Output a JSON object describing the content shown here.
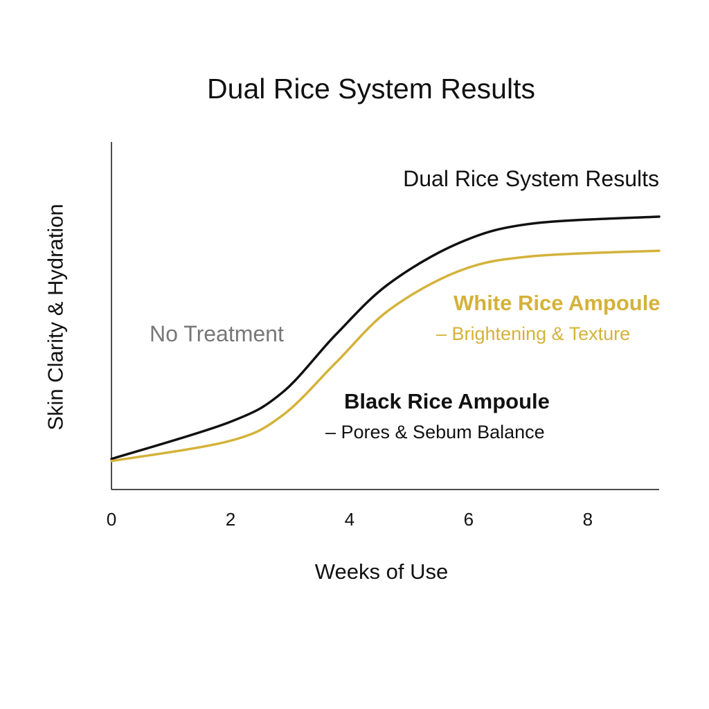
{
  "chart_data": {
    "type": "line",
    "title": "Dual Rice System Results",
    "inner_title": "Dual Rice System Results",
    "xlabel": "Weeks of Use",
    "ylabel": "Skin Clarity & Hydration",
    "xlim": [
      0,
      9.2
    ],
    "ylim": [
      0,
      100
    ],
    "x_ticks": [
      0,
      2,
      4,
      6,
      8
    ],
    "x_tick_labels": [
      "0",
      "2",
      "4",
      "6",
      "8"
    ],
    "grid": false,
    "series": [
      {
        "name": "Dual Rice System",
        "color": "#111111",
        "x": [
          0,
          1.97,
          2.87,
          3.77,
          4.66,
          5.86,
          7.06,
          9.2
        ],
        "y": [
          8.8,
          19.3,
          27.9,
          44.6,
          59.2,
          71.1,
          76.5,
          78.5
        ]
      },
      {
        "name": "White Rice Ampoule",
        "color": "#d4b23a",
        "x": [
          0,
          1.97,
          2.87,
          3.77,
          4.66,
          5.86,
          7.06,
          9.2
        ],
        "y": [
          8.2,
          13.9,
          21.3,
          36.5,
          51.6,
          63.0,
          67.1,
          68.7
        ]
      }
    ],
    "annotations": {
      "no_treatment": "No Treatment",
      "white_rice": "White Rice Ampoule",
      "white_rice_sub": "– Brightening & Texture",
      "black_rice": "Black Rice Ampoule",
      "black_rice_sub": "– Pores & Sebum Balance"
    }
  }
}
